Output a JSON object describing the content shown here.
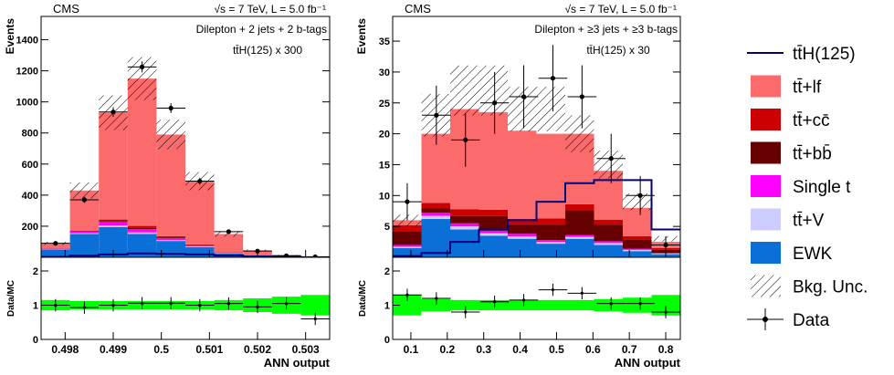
{
  "legend": [
    {
      "label": "tt̄H(125)",
      "kind": "line",
      "color": "#00007f"
    },
    {
      "label": "tt̄+lf",
      "kind": "fill",
      "color": "#fb6b6b"
    },
    {
      "label": "tt̄+cc̄",
      "kind": "fill",
      "color": "#cc0000"
    },
    {
      "label": "tt̄+bb̄",
      "kind": "fill",
      "color": "#660000"
    },
    {
      "label": "Single t",
      "kind": "fill",
      "color": "#ff00ff"
    },
    {
      "label": "tt̄+V",
      "kind": "fill",
      "color": "#ccccff"
    },
    {
      "label": "EWK",
      "kind": "fill",
      "color": "#0a6fd6"
    },
    {
      "label": "Bkg. Unc.",
      "kind": "hatch",
      "color": "#000000"
    },
    {
      "label": "Data",
      "kind": "marker",
      "color": "#000000"
    }
  ],
  "colors": {
    "ttlf": "#fb6b6b",
    "ttcc": "#cc0000",
    "ttbb": "#660000",
    "singlet": "#ff00ff",
    "ttv": "#ccccff",
    "ewk": "#0a6fd6",
    "tth": "#00007f",
    "ratio_band": "#00ff00"
  },
  "chart_data": [
    {
      "type": "bar",
      "stacked": true,
      "experiment": "CMS",
      "energy_label": "√s = 7 TeV, L = 5.0 fb⁻¹",
      "channel": "Dilepton  + 2 jets + 2 b-tags",
      "signal_label": "tt̄H(125) x 300",
      "xlabel": "ANN output",
      "ylabel": "Events",
      "ratio_ylabel": "Data/MC",
      "xlim": [
        0.4975,
        0.5035
      ],
      "ylim": [
        0,
        1550
      ],
      "yticks": [
        200,
        400,
        600,
        800,
        1000,
        1200,
        1400
      ],
      "xticks": [
        0.498,
        0.499,
        0.5,
        0.501,
        0.502,
        0.503
      ],
      "xtick_labels": [
        "0.498",
        "0.499",
        "0.5",
        "0.501",
        "0.502",
        "0.503"
      ],
      "ratio_ylim": [
        0,
        2.4
      ],
      "ratio_yticks": [
        0,
        1,
        2
      ],
      "bin_edges": [
        0.4975,
        0.4981,
        0.4987,
        0.4993,
        0.4999,
        0.5005,
        0.5011,
        0.5017,
        0.5023,
        0.5029,
        0.5035
      ],
      "series": [
        {
          "name": "EWK",
          "key": "ewk",
          "values": [
            50,
            150,
            195,
            150,
            105,
            65,
            25,
            10,
            4,
            2
          ]
        },
        {
          "name": "tt̄+V",
          "key": "ttv",
          "values": [
            2,
            5,
            10,
            10,
            6,
            4,
            2,
            1,
            0.5,
            0.3
          ]
        },
        {
          "name": "Single t",
          "key": "singlet",
          "values": [
            3,
            10,
            22,
            22,
            12,
            6,
            2,
            1,
            0.5,
            0.2
          ]
        },
        {
          "name": "tt̄+bb̄",
          "key": "ttbb",
          "values": [
            1,
            3,
            6,
            8,
            5,
            3,
            1,
            0.5,
            0.2,
            0.1
          ]
        },
        {
          "name": "tt̄+cc̄",
          "key": "ttcc",
          "values": [
            1,
            4,
            10,
            12,
            8,
            5,
            2,
            1,
            0.5,
            0.2
          ]
        },
        {
          "name": "tt̄+lf",
          "key": "ttlf",
          "values": [
            33,
            258,
            687,
            948,
            654,
            407,
            118,
            31,
            8,
            2
          ]
        }
      ],
      "band_values": [
        90,
        430,
        930,
        1150,
        790,
        490,
        150,
        45,
        14,
        5
      ],
      "band_rel_unc": 0.12,
      "signal_values": [
        3,
        10,
        18,
        25,
        22,
        18,
        12,
        6,
        3,
        1
      ],
      "data_x": [
        0.4978,
        0.4984,
        0.499,
        0.4996,
        0.5002,
        0.5008,
        0.5014,
        0.502,
        0.5026,
        0.5032
      ],
      "data_y": [
        90,
        370,
        935,
        1225,
        960,
        490,
        165,
        40,
        10,
        3
      ],
      "ratio_values": [
        1.0,
        0.93,
        1.0,
        1.06,
        1.06,
        1.0,
        1.05,
        0.95,
        1.05,
        0.6
      ],
      "ratio_band_unc": [
        0.15,
        0.12,
        0.12,
        0.12,
        0.12,
        0.12,
        0.15,
        0.2,
        0.25,
        0.3
      ]
    },
    {
      "type": "bar",
      "stacked": true,
      "experiment": "CMS",
      "energy_label": "√s = 7 TeV, L = 5.0 fb⁻¹",
      "channel": "Dilepton  + ≥3 jets + ≥3 b-tags",
      "signal_label": "tt̄H(125) x 30",
      "xlabel": "ANN output",
      "ylabel": "Events",
      "ratio_ylabel": "Data/MC",
      "xlim": [
        0.05,
        0.84
      ],
      "ylim": [
        0,
        39
      ],
      "yticks": [
        5,
        10,
        15,
        20,
        25,
        30,
        35
      ],
      "xticks": [
        0.1,
        0.2,
        0.3,
        0.4,
        0.5,
        0.6,
        0.7,
        0.8
      ],
      "xtick_labels": [
        "0.1",
        "0.2",
        "0.3",
        "0.4",
        "0.5",
        "0.6",
        "0.7",
        "0.8"
      ],
      "ratio_ylim": [
        0,
        2.4
      ],
      "ratio_yticks": [
        0,
        1,
        2
      ],
      "bin_edges": [
        0.05,
        0.129,
        0.208,
        0.287,
        0.366,
        0.445,
        0.524,
        0.603,
        0.682,
        0.761,
        0.84
      ],
      "series": [
        {
          "name": "EWK",
          "key": "ewk",
          "values": [
            1.5,
            6.2,
            4.5,
            3.5,
            3.0,
            2.2,
            3.0,
            2.0,
            1.0,
            0.5
          ]
        },
        {
          "name": "tt̄+V",
          "key": "ttv",
          "values": [
            0.2,
            0.5,
            0.5,
            0.4,
            0.4,
            0.3,
            0.3,
            0.3,
            0.2,
            0.1
          ]
        },
        {
          "name": "Single t",
          "key": "singlet",
          "values": [
            0.3,
            0.5,
            0.5,
            0.4,
            0.4,
            0.3,
            0.3,
            0.3,
            0.2,
            0.1
          ]
        },
        {
          "name": "tt̄+bb̄",
          "key": "ttbb",
          "values": [
            2.2,
            0.7,
            1.2,
            2.4,
            1.5,
            2.5,
            4.0,
            2.7,
            1.5,
            0.5
          ]
        },
        {
          "name": "tt̄+cc̄",
          "key": "ttcc",
          "values": [
            1.0,
            0.9,
            1.1,
            1.0,
            0.9,
            1.0,
            1.0,
            0.8,
            0.5,
            0.3
          ]
        },
        {
          "name": "tt̄+lf",
          "key": "ttlf",
          "values": [
            0.8,
            11.2,
            16.2,
            15.8,
            14.3,
            13.7,
            11.4,
            7.9,
            4.6,
            1.0
          ]
        }
      ],
      "band_values": [
        6.0,
        23.0,
        27.0,
        27.0,
        24.0,
        24.0,
        20.0,
        15.0,
        9.0,
        3.0
      ],
      "band_rel_unc": 0.15,
      "signal_values": [
        0.2,
        0.7,
        2.5,
        4.5,
        6.0,
        9.0,
        12.0,
        12.5,
        12.5,
        4.5
      ],
      "data_x": [
        0.09,
        0.17,
        0.25,
        0.33,
        0.41,
        0.49,
        0.57,
        0.65,
        0.73,
        0.8
      ],
      "data_y": [
        9,
        23,
        19,
        25,
        26,
        29,
        26,
        16,
        10,
        2
      ],
      "ratio_values": [
        1.3,
        1.2,
        0.8,
        1.1,
        1.15,
        1.45,
        1.35,
        1.05,
        1.05,
        0.8
      ],
      "ratio_band_unc": [
        0.3,
        0.18,
        0.15,
        0.15,
        0.15,
        0.15,
        0.15,
        0.18,
        0.22,
        0.3
      ]
    }
  ]
}
